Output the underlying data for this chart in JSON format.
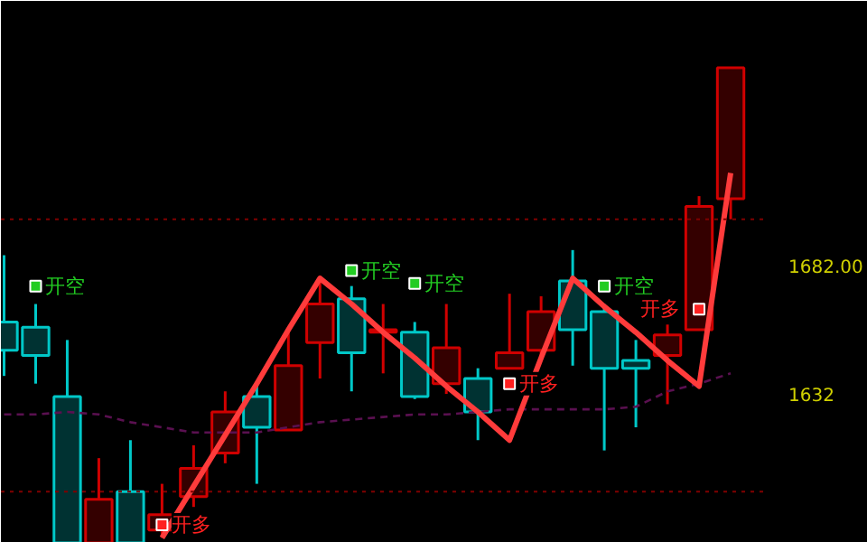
{
  "chart_data": {
    "type": "candlestick",
    "categories": [
      null,
      null,
      null,
      null,
      null,
      null,
      null,
      null,
      null,
      null,
      null,
      null,
      null,
      null,
      null,
      null,
      null,
      null,
      null,
      null,
      null,
      null,
      null,
      null
    ],
    "ylim": [
      1574,
      1785
    ],
    "yticks": [
      {
        "value": 1632,
        "label": "1632"
      },
      {
        "value": 1682,
        "label": "1682.00"
      }
    ],
    "tick_labels": "y",
    "grid": false,
    "ohlc": [
      [
        1660,
        1686,
        1639,
        1649
      ],
      [
        1658,
        1667,
        1636,
        1647
      ],
      [
        1631,
        1653,
        1574,
        1574
      ],
      [
        1574,
        1607,
        1574,
        1591
      ],
      [
        1594,
        1614,
        1574,
        1574
      ],
      [
        1579,
        1597,
        1576,
        1585
      ],
      [
        1592,
        1612,
        1588,
        1603
      ],
      [
        1609,
        1633,
        1605,
        1625
      ],
      [
        1631,
        1636,
        1597,
        1619
      ],
      [
        1618,
        1656,
        1618,
        1643
      ],
      [
        1652,
        1678,
        1638,
        1667
      ],
      [
        1669,
        1674,
        1633,
        1648
      ],
      [
        1656,
        1667,
        1640,
        1657
      ],
      [
        1656,
        1660,
        1630,
        1631
      ],
      [
        1636,
        1667,
        1632,
        1650
      ],
      [
        1638,
        1642,
        1614,
        1625
      ],
      [
        1642,
        1671,
        1642,
        1648
      ],
      [
        1649,
        1670,
        1647,
        1664
      ],
      [
        1676,
        1688,
        1643,
        1657
      ],
      [
        1664,
        1667,
        1610,
        1642
      ],
      [
        1645,
        1653,
        1619,
        1642
      ],
      [
        1647,
        1659,
        1628,
        1655
      ],
      [
        1657,
        1709,
        1657,
        1705
      ],
      [
        1708,
        1759,
        1700,
        1759
      ]
    ],
    "colors": [
      "#00c8c8",
      "#00c8c8",
      "#00c8c8",
      "#d00000",
      "#00c8c8",
      "#d00000",
      "#d00000",
      "#d00000",
      "#00c8c8",
      "#d00000",
      "#d00000",
      "#00c8c8",
      "#d00000",
      "#00c8c8",
      "#d00000",
      "#00c8c8",
      "#d00000",
      "#d00000",
      "#00c8c8",
      "#00c8c8",
      "#00c8c8",
      "#d00000",
      "#d00000",
      "#d00000"
    ],
    "series": [
      {
        "type": "line",
        "color": "#5a1050",
        "line_style": "dashed",
        "values": [
          1624,
          1624,
          1625,
          1624,
          1621,
          1619,
          1617,
          1617,
          1617,
          1619,
          1621,
          1622,
          1623,
          1624,
          1624,
          1625,
          1626,
          1626,
          1626,
          1626,
          1627,
          1633,
          1636,
          1640
        ]
      },
      {
        "type": "line",
        "color": "#ff3b3b",
        "line_style": "solid",
        "values": [
          null,
          null,
          null,
          null,
          null,
          1576,
          1596,
          1616,
          1636,
          1657,
          1677,
          1667,
          1656,
          1646,
          1635,
          1625,
          1614,
          1646,
          1677,
          1666,
          1656,
          1645,
          1635,
          1718
        ]
      },
      {
        "type": "scatter",
        "color": "#22cc22",
        "marker": "square",
        "values": [
          null,
          1674,
          null,
          null,
          null,
          null,
          null,
          null,
          null,
          null,
          null,
          1680,
          null,
          1675,
          null,
          null,
          null,
          null,
          null,
          1674,
          null,
          null,
          null,
          null
        ],
        "value_labels": [
          null,
          "开空",
          null,
          null,
          null,
          null,
          null,
          null,
          null,
          null,
          null,
          "开空",
          null,
          "开空",
          null,
          null,
          null,
          null,
          null,
          "开空",
          null,
          null,
          null,
          null
        ]
      },
      {
        "type": "scatter",
        "color": "#ff2020",
        "marker": "square",
        "values": [
          null,
          null,
          null,
          null,
          null,
          1581,
          null,
          null,
          null,
          null,
          null,
          null,
          null,
          null,
          null,
          null,
          1636,
          null,
          null,
          null,
          null,
          null,
          1665,
          null
        ],
        "value_labels": [
          null,
          null,
          null,
          null,
          null,
          "开多",
          null,
          null,
          null,
          null,
          null,
          null,
          null,
          null,
          null,
          null,
          "开多",
          null,
          null,
          null,
          null,
          null,
          "开多",
          null
        ]
      }
    ],
    "ref_lines": [
      {
        "axis": "y",
        "value": 1700,
        "color": "#800000",
        "line_style": "dotted"
      },
      {
        "axis": "y",
        "value": 1594,
        "color": "#800000",
        "line_style": "dotted"
      }
    ]
  }
}
